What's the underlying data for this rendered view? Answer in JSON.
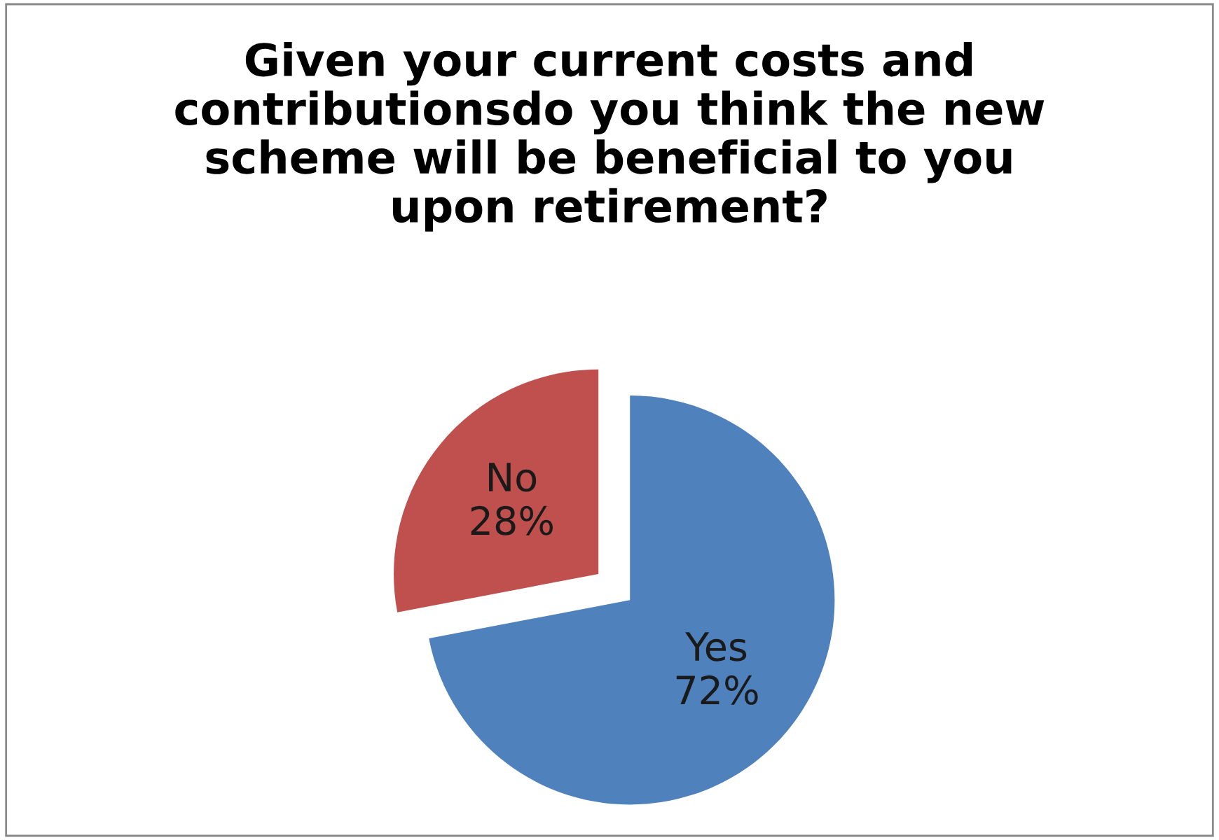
{
  "chart_data": {
    "type": "pie",
    "title": "Given your current costs and\ncontributionsdo you think the new\nscheme will be beneficial to you\nupon retirement?",
    "categories": [
      "Yes",
      "No"
    ],
    "values": [
      72,
      28
    ],
    "value_labels": [
      "72%",
      "28%"
    ],
    "colors": [
      "#4f81bd",
      "#c0504d"
    ],
    "legend": false
  }
}
